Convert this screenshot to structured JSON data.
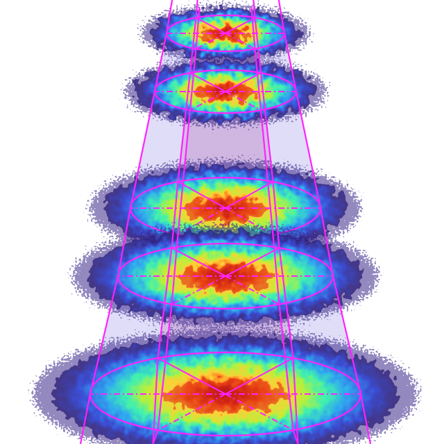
{
  "diagram": {
    "type": "stacked beam-profile slices with hexagonal frustum outline",
    "slice_count": 5,
    "colors": {
      "background": "#ffffff",
      "outline": "#ff22ff",
      "frustum_fill": "#8c86e6",
      "frustum_tint": "#c6a4d6",
      "colormap": [
        "#2a1a6e",
        "#3b4fd6",
        "#2fa8f0",
        "#3ff0b0",
        "#b8f03a",
        "#ffd23a",
        "#ff7a1a",
        "#d8261a",
        "#8a0c12"
      ]
    }
  }
}
